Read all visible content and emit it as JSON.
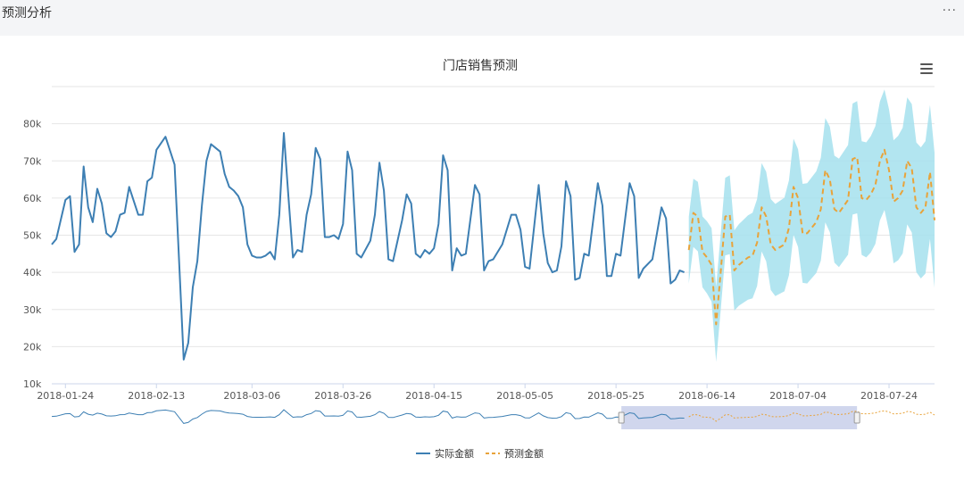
{
  "page": {
    "title": "预测分析",
    "more_icon": "ellipsis-icon"
  },
  "toolbar": {
    "menu_icon": "hamburger-menu-icon"
  },
  "chart_data": {
    "type": "line",
    "title": "门店销售预测",
    "y_axis": {
      "ticks": [
        "10k",
        "20k",
        "30k",
        "40k",
        "50k",
        "60k",
        "70k",
        "80k"
      ],
      "range": [
        10000,
        90000
      ]
    },
    "x_axis": {
      "range": [
        "2018-01-21",
        "2018-08-03"
      ],
      "ticks": [
        "2018-01-24",
        "2018-02-13",
        "2018-03-06",
        "2018-03-26",
        "2018-04-15",
        "2018-05-05",
        "2018-05-25",
        "2018-06-14",
        "2018-07-04",
        "2018-07-24"
      ]
    },
    "legend": {
      "placement": "bottom-center",
      "items": [
        "实际金额",
        "预测金额"
      ]
    },
    "colors": {
      "actual": "#3d7fb3",
      "forecast": "#e8a33a",
      "band": "#a5e0ed",
      "zoom_window": "#c4cce8"
    },
    "series": [
      {
        "name": "实际金额",
        "style": "solid",
        "points": [
          [
            "2018-01-21",
            47500
          ],
          [
            "2018-01-22",
            49000
          ],
          [
            "2018-01-24",
            59500
          ],
          [
            "2018-01-25",
            60500
          ],
          [
            "2018-01-26",
            45500
          ],
          [
            "2018-01-27",
            47500
          ],
          [
            "2018-01-28",
            68500
          ],
          [
            "2018-01-29",
            57500
          ],
          [
            "2018-01-30",
            53500
          ],
          [
            "2018-01-31",
            62500
          ],
          [
            "2018-02-01",
            58500
          ],
          [
            "2018-02-02",
            50500
          ],
          [
            "2018-02-03",
            49500
          ],
          [
            "2018-02-04",
            51000
          ],
          [
            "2018-02-05",
            55500
          ],
          [
            "2018-02-06",
            56000
          ],
          [
            "2018-02-07",
            63000
          ],
          [
            "2018-02-09",
            55500
          ],
          [
            "2018-02-10",
            55500
          ],
          [
            "2018-02-11",
            64500
          ],
          [
            "2018-02-12",
            65500
          ],
          [
            "2018-02-13",
            73000
          ],
          [
            "2018-02-15",
            76500
          ],
          [
            "2018-02-17",
            69000
          ],
          [
            "2018-02-19",
            16500
          ],
          [
            "2018-02-20",
            21000
          ],
          [
            "2018-02-21",
            36000
          ],
          [
            "2018-02-22",
            43000
          ],
          [
            "2018-02-23",
            58000
          ],
          [
            "2018-02-24",
            70000
          ],
          [
            "2018-02-25",
            74500
          ],
          [
            "2018-02-26",
            73500
          ],
          [
            "2018-02-27",
            72500
          ],
          [
            "2018-02-28",
            66500
          ],
          [
            "2018-03-01",
            63000
          ],
          [
            "2018-03-02",
            62000
          ],
          [
            "2018-03-03",
            60500
          ],
          [
            "2018-03-04",
            57500
          ],
          [
            "2018-03-05",
            47500
          ],
          [
            "2018-03-06",
            44500
          ],
          [
            "2018-03-07",
            44000
          ],
          [
            "2018-03-08",
            44000
          ],
          [
            "2018-03-09",
            44500
          ],
          [
            "2018-03-10",
            45500
          ],
          [
            "2018-03-11",
            43500
          ],
          [
            "2018-03-12",
            55500
          ],
          [
            "2018-03-13",
            77500
          ],
          [
            "2018-03-14",
            60500
          ],
          [
            "2018-03-15",
            44000
          ],
          [
            "2018-03-16",
            46000
          ],
          [
            "2018-03-17",
            45500
          ],
          [
            "2018-03-18",
            55500
          ],
          [
            "2018-03-19",
            61000
          ],
          [
            "2018-03-20",
            73500
          ],
          [
            "2018-03-21",
            70500
          ],
          [
            "2018-03-22",
            49500
          ],
          [
            "2018-03-23",
            49500
          ],
          [
            "2018-03-24",
            50000
          ],
          [
            "2018-03-25",
            49000
          ],
          [
            "2018-03-26",
            53000
          ],
          [
            "2018-03-27",
            72500
          ],
          [
            "2018-03-28",
            67500
          ],
          [
            "2018-03-29",
            45000
          ],
          [
            "2018-03-30",
            44000
          ],
          [
            "2018-04-01",
            48500
          ],
          [
            "2018-04-02",
            55500
          ],
          [
            "2018-04-03",
            69500
          ],
          [
            "2018-04-04",
            62000
          ],
          [
            "2018-04-05",
            43500
          ],
          [
            "2018-04-06",
            43000
          ],
          [
            "2018-04-08",
            54000
          ],
          [
            "2018-04-09",
            61000
          ],
          [
            "2018-04-10",
            58500
          ],
          [
            "2018-04-11",
            45000
          ],
          [
            "2018-04-12",
            44000
          ],
          [
            "2018-04-13",
            46000
          ],
          [
            "2018-04-14",
            45000
          ],
          [
            "2018-04-15",
            46500
          ],
          [
            "2018-04-16",
            53000
          ],
          [
            "2018-04-17",
            71500
          ],
          [
            "2018-04-18",
            67500
          ],
          [
            "2018-04-19",
            40500
          ],
          [
            "2018-04-20",
            46500
          ],
          [
            "2018-04-21",
            44500
          ],
          [
            "2018-04-22",
            45000
          ],
          [
            "2018-04-24",
            63500
          ],
          [
            "2018-04-25",
            61000
          ],
          [
            "2018-04-26",
            40500
          ],
          [
            "2018-04-27",
            43000
          ],
          [
            "2018-04-28",
            43500
          ],
          [
            "2018-04-30",
            47500
          ],
          [
            "2018-05-02",
            55500
          ],
          [
            "2018-05-03",
            55500
          ],
          [
            "2018-05-04",
            51500
          ],
          [
            "2018-05-05",
            41500
          ],
          [
            "2018-05-06",
            41000
          ],
          [
            "2018-05-08",
            63500
          ],
          [
            "2018-05-09",
            50500
          ],
          [
            "2018-05-10",
            42500
          ],
          [
            "2018-05-11",
            40000
          ],
          [
            "2018-05-12",
            40500
          ],
          [
            "2018-05-13",
            47000
          ],
          [
            "2018-05-14",
            64500
          ],
          [
            "2018-05-15",
            60500
          ],
          [
            "2018-05-16",
            38000
          ],
          [
            "2018-05-17",
            38500
          ],
          [
            "2018-05-18",
            45000
          ],
          [
            "2018-05-19",
            44500
          ],
          [
            "2018-05-21",
            64000
          ],
          [
            "2018-05-22",
            58000
          ],
          [
            "2018-05-23",
            39000
          ],
          [
            "2018-05-24",
            39000
          ],
          [
            "2018-05-25",
            45000
          ],
          [
            "2018-05-26",
            44500
          ],
          [
            "2018-05-28",
            64000
          ],
          [
            "2018-05-29",
            60500
          ],
          [
            "2018-05-30",
            38500
          ],
          [
            "2018-05-31",
            41000
          ],
          [
            "2018-06-02",
            43500
          ],
          [
            "2018-06-04",
            57500
          ],
          [
            "2018-06-05",
            54500
          ],
          [
            "2018-06-06",
            37000
          ],
          [
            "2018-06-07",
            38000
          ],
          [
            "2018-06-08",
            40500
          ],
          [
            "2018-06-09",
            40000
          ]
        ]
      },
      {
        "name": "预测金额",
        "style": "dashed",
        "points": [
          [
            "2018-06-10",
            46000
          ],
          [
            "2018-06-11",
            56000
          ],
          [
            "2018-06-12",
            55000
          ],
          [
            "2018-06-13",
            45500
          ],
          [
            "2018-06-14",
            44000
          ],
          [
            "2018-06-15",
            42000
          ],
          [
            "2018-06-16",
            26000
          ],
          [
            "2018-06-17",
            40000
          ],
          [
            "2018-06-18",
            55000
          ],
          [
            "2018-06-19",
            55500
          ],
          [
            "2018-06-20",
            40500
          ],
          [
            "2018-06-21",
            42000
          ],
          [
            "2018-06-22",
            43000
          ],
          [
            "2018-06-23",
            44000
          ],
          [
            "2018-06-24",
            44500
          ],
          [
            "2018-06-25",
            48000
          ],
          [
            "2018-06-26",
            57500
          ],
          [
            "2018-06-27",
            55000
          ],
          [
            "2018-06-28",
            47500
          ],
          [
            "2018-06-29",
            46000
          ],
          [
            "2018-07-01",
            47500
          ],
          [
            "2018-07-02",
            52000
          ],
          [
            "2018-07-03",
            63000
          ],
          [
            "2018-07-04",
            60000
          ],
          [
            "2018-07-05",
            50500
          ],
          [
            "2018-07-06",
            50500
          ],
          [
            "2018-07-08",
            53500
          ],
          [
            "2018-07-09",
            57000
          ],
          [
            "2018-07-10",
            67500
          ],
          [
            "2018-07-11",
            65000
          ],
          [
            "2018-07-12",
            57000
          ],
          [
            "2018-07-13",
            56000
          ],
          [
            "2018-07-15",
            59500
          ],
          [
            "2018-07-16",
            70500
          ],
          [
            "2018-07-17",
            71000
          ],
          [
            "2018-07-18",
            60000
          ],
          [
            "2018-07-19",
            59500
          ],
          [
            "2018-07-20",
            61000
          ],
          [
            "2018-07-21",
            63500
          ],
          [
            "2018-07-22",
            70000
          ],
          [
            "2018-07-23",
            73000
          ],
          [
            "2018-07-24",
            67500
          ],
          [
            "2018-07-25",
            59000
          ],
          [
            "2018-07-26",
            60000
          ],
          [
            "2018-07-27",
            62000
          ],
          [
            "2018-07-28",
            70000
          ],
          [
            "2018-07-29",
            68000
          ],
          [
            "2018-07-30",
            57500
          ],
          [
            "2018-07-31",
            56000
          ],
          [
            "2018-08-01",
            57500
          ],
          [
            "2018-08-02",
            67000
          ],
          [
            "2018-08-03",
            54000
          ]
        ]
      }
    ]
  }
}
